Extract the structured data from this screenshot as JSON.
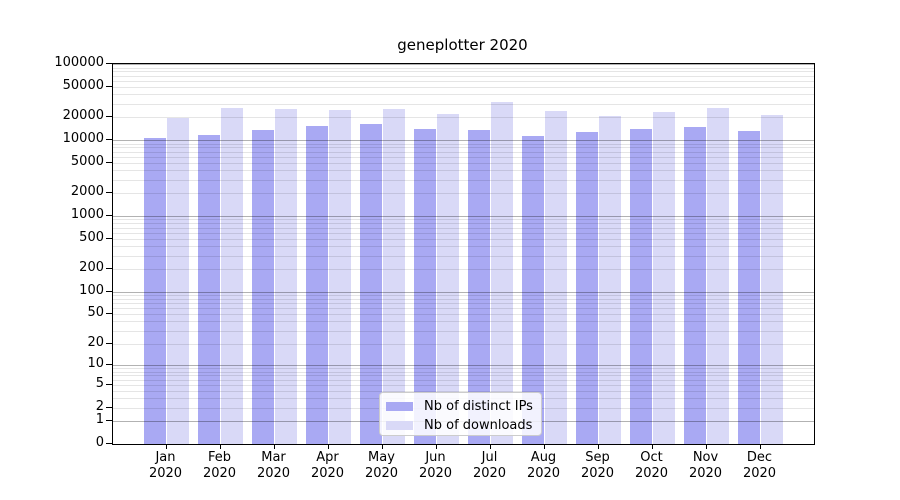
{
  "title": "geneplotter 2020",
  "colors": {
    "distinct_ips_bar": "#a9a9f3",
    "downloads_bar": "#d9d9f7",
    "major_gridline": "rgba(0,0,0,0.30)",
    "minor_gridline": "rgba(0,0,0,0.10)",
    "axis": "#000000",
    "background": "#ffffff"
  },
  "legend": {
    "items": [
      {
        "label": "Nb of distinct IPs",
        "color": "#a9a9f3"
      },
      {
        "label": "Nb of downloads",
        "color": "#d9d9f7"
      }
    ]
  },
  "chart_data": {
    "type": "bar",
    "title": "geneplotter 2020",
    "scale": "log10(1+x)",
    "ylim": [
      0,
      100000
    ],
    "grid": "major lines at powers of 10, minor lines at 2-9 multiples",
    "legend_position": "bottom-center inside plot",
    "year": "2020",
    "categories": [
      "Jan 2020",
      "Feb 2020",
      "Mar 2020",
      "Apr 2020",
      "May 2020",
      "Jun 2020",
      "Jul 2020",
      "Aug 2020",
      "Sep 2020",
      "Oct 2020",
      "Nov 2020",
      "Dec 2020"
    ],
    "months": [
      "Jan",
      "Feb",
      "Mar",
      "Apr",
      "May",
      "Jun",
      "Jul",
      "Aug",
      "Sep",
      "Oct",
      "Nov",
      "Dec"
    ],
    "series": [
      {
        "name": "Nb of distinct IPs",
        "color": "#a9a9f3",
        "values": [
          10600,
          11700,
          13600,
          15500,
          16300,
          14100,
          13600,
          11300,
          12600,
          14000,
          14900,
          13300
        ]
      },
      {
        "name": "Nb of downloads",
        "color": "#d9d9f7",
        "values": [
          19300,
          26100,
          25600,
          24800,
          25600,
          21800,
          31700,
          24100,
          21000,
          23200,
          26400,
          21400
        ]
      }
    ],
    "y_ticks": [
      {
        "label": "100000",
        "value": 100000
      },
      {
        "label": "50000",
        "value": 50000
      },
      {
        "label": "20000",
        "value": 20000
      },
      {
        "label": "10000",
        "value": 10000
      },
      {
        "label": "5000",
        "value": 5000
      },
      {
        "label": "2000",
        "value": 2000
      },
      {
        "label": "1000",
        "value": 1000
      },
      {
        "label": "500",
        "value": 500
      },
      {
        "label": "200",
        "value": 200
      },
      {
        "label": "100",
        "value": 100
      },
      {
        "label": "50",
        "value": 50
      },
      {
        "label": "20",
        "value": 20
      },
      {
        "label": "10",
        "value": 10
      },
      {
        "label": "5",
        "value": 5
      },
      {
        "label": "2",
        "value": 2
      },
      {
        "label": "1",
        "value": 1
      },
      {
        "label": "0",
        "value": 0
      }
    ]
  }
}
